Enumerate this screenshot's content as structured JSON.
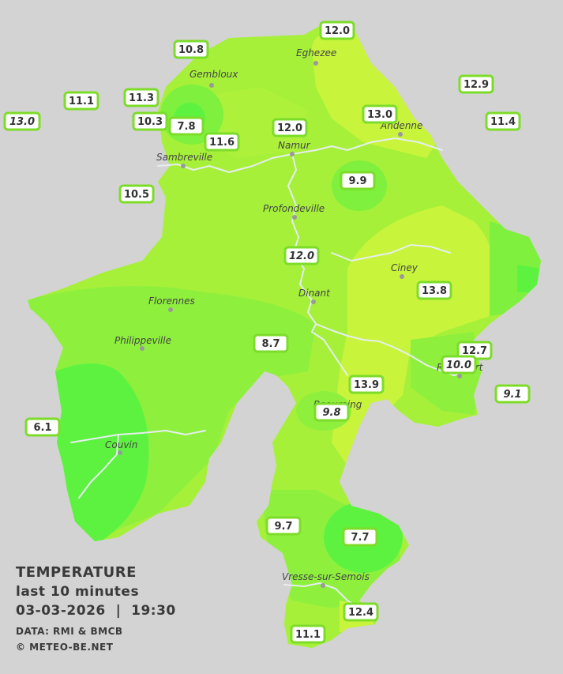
{
  "caption": {
    "title": "TEMPERATURE",
    "subtitle": "last 10 minutes",
    "datetime": "03-03-2026  |  19:30",
    "source": "DATA: RMI & BMCB",
    "copyright": "© METEO-BE.NET"
  },
  "colors": {
    "background": "#d3d3d3",
    "warm_yellow_green": "#c8f53c",
    "mid_green": "#a6f03a",
    "green": "#7ff03e",
    "cool_green": "#5ef240",
    "station_border": "#7ddc2a",
    "rivers": "#e6eef0"
  },
  "cities": [
    {
      "name": "Eghezee"
    },
    {
      "name": "Gembloux"
    },
    {
      "name": "Andenne"
    },
    {
      "name": "Namur"
    },
    {
      "name": "Sambreville"
    },
    {
      "name": "Profondeville"
    },
    {
      "name": "Ciney"
    },
    {
      "name": "Dinant"
    },
    {
      "name": "Florennes"
    },
    {
      "name": "Philippeville"
    },
    {
      "name": "Rochefort"
    },
    {
      "name": "Beauraing"
    },
    {
      "name": "Couvin"
    },
    {
      "name": "Vresse-sur-Semois"
    }
  ],
  "stations": [
    {
      "value": "12.0",
      "italic": false
    },
    {
      "value": "10.8",
      "italic": false
    },
    {
      "value": "12.9",
      "italic": false
    },
    {
      "value": "11.1",
      "italic": false
    },
    {
      "value": "11.3",
      "italic": false
    },
    {
      "value": "13.0",
      "italic": false
    },
    {
      "value": "13.0",
      "italic": true
    },
    {
      "value": "10.3",
      "italic": false
    },
    {
      "value": "7.8",
      "italic": false
    },
    {
      "value": "12.0",
      "italic": false
    },
    {
      "value": "11.4",
      "italic": false
    },
    {
      "value": "11.6",
      "italic": false
    },
    {
      "value": "9.9",
      "italic": false
    },
    {
      "value": "10.5",
      "italic": false
    },
    {
      "value": "12.0",
      "italic": true
    },
    {
      "value": "13.8",
      "italic": false
    },
    {
      "value": "8.7",
      "italic": false
    },
    {
      "value": "12.7",
      "italic": false
    },
    {
      "value": "10.0",
      "italic": true
    },
    {
      "value": "13.9",
      "italic": false
    },
    {
      "value": "9.1",
      "italic": true
    },
    {
      "value": "9.8",
      "italic": true
    },
    {
      "value": "6.1",
      "italic": false
    },
    {
      "value": "9.7",
      "italic": false
    },
    {
      "value": "7.7",
      "italic": false
    },
    {
      "value": "12.4",
      "italic": false
    },
    {
      "value": "11.1",
      "italic": false
    }
  ]
}
